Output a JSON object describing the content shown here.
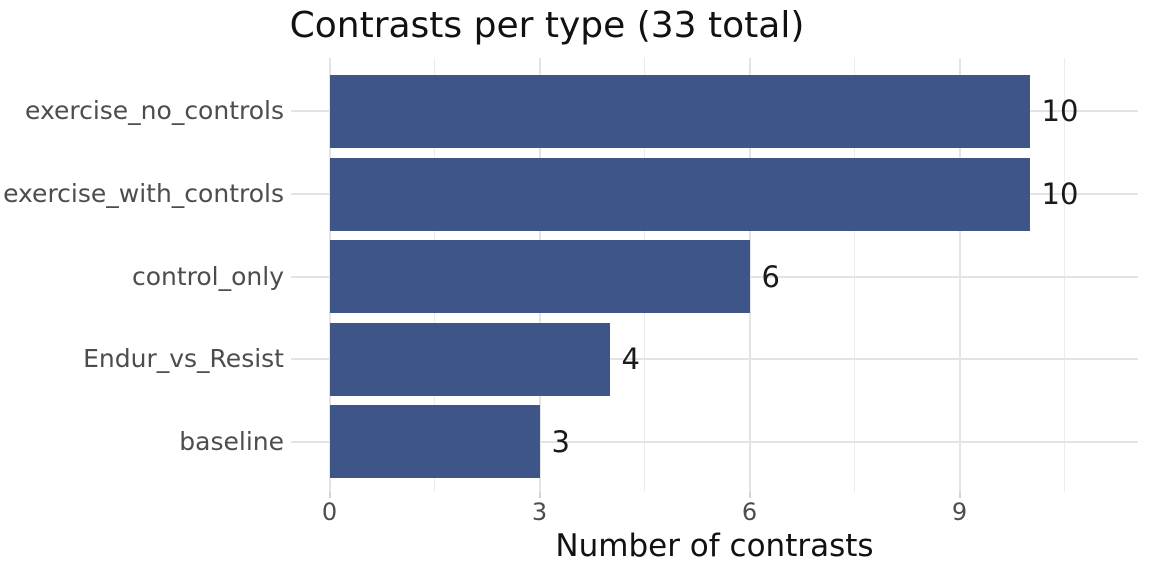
{
  "chart_data": {
    "type": "bar",
    "orientation": "horizontal",
    "title": "Contrasts per type (33 total)",
    "xlabel": "Number of contrasts",
    "ylabel": "",
    "categories": [
      "exercise_no_controls",
      "exercise_with_controls",
      "control_only",
      "Endur_vs_Resist",
      "baseline"
    ],
    "values": [
      10,
      10,
      6,
      4,
      3
    ],
    "bar_value_labels": [
      "10",
      "10",
      "6",
      "4",
      "3"
    ],
    "total": 33,
    "x_major_ticks": [
      0,
      3,
      6,
      9
    ],
    "x_major_tick_labels": [
      "0",
      "3",
      "6",
      "9"
    ],
    "x_minor_ticks": [
      1.5,
      4.5,
      7.5,
      10.5
    ],
    "xlim": [
      -0.55,
      11.55
    ],
    "grid": "on",
    "legend": "none",
    "colors": {
      "bar": "#3d5588",
      "axis_text": "#4d4d4d",
      "value_text": "#1a1a1a",
      "grid_major": "#e4e4e4",
      "grid_minor": "#ececec",
      "tick_mark": "#d4d4d4",
      "background": "#ffffff"
    }
  }
}
